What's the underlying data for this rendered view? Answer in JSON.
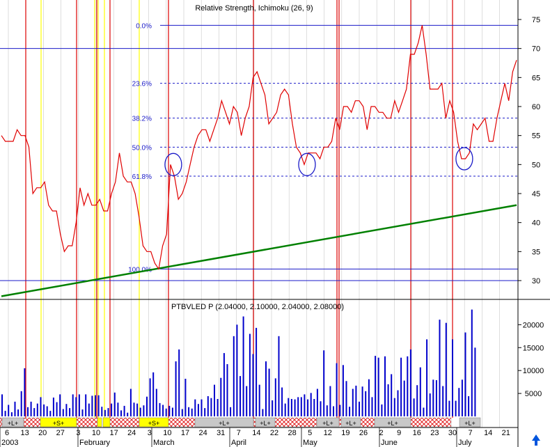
{
  "chart_data": [
    {
      "type": "line",
      "title": "Relative Strength, Ichimoku (26, 9)",
      "ylim": [
        27,
        78
      ],
      "y_ticks": [
        30,
        35,
        40,
        45,
        50,
        55,
        60,
        65,
        70,
        75
      ],
      "series": [
        {
          "name": "Relative Strength",
          "color": "#e00000",
          "points": [
            [
              0,
              55
            ],
            [
              2,
              54
            ],
            [
              4,
              54
            ],
            [
              6,
              54
            ],
            [
              8,
              56
            ],
            [
              10,
              55
            ],
            [
              12,
              55
            ],
            [
              14,
              53
            ],
            [
              16,
              45
            ],
            [
              18,
              46
            ],
            [
              20,
              46
            ],
            [
              22,
              47
            ],
            [
              24,
              43
            ],
            [
              26,
              42
            ],
            [
              28,
              42
            ],
            [
              30,
              38
            ],
            [
              32,
              35
            ],
            [
              34,
              36
            ],
            [
              36,
              36
            ],
            [
              38,
              40
            ],
            [
              40,
              46
            ],
            [
              42,
              43
            ],
            [
              44,
              45
            ],
            [
              46,
              43
            ],
            [
              48,
              43
            ],
            [
              50,
              44
            ],
            [
              52,
              42
            ],
            [
              54,
              42
            ],
            [
              56,
              45
            ],
            [
              58,
              47
            ],
            [
              60,
              52
            ],
            [
              62,
              48
            ],
            [
              64,
              47
            ],
            [
              66,
              47
            ],
            [
              68,
              45
            ],
            [
              70,
              41
            ],
            [
              72,
              36
            ],
            [
              74,
              35
            ],
            [
              76,
              35
            ],
            [
              78,
              33
            ],
            [
              80,
              32
            ],
            [
              82,
              36
            ],
            [
              84,
              38
            ],
            [
              86,
              50
            ],
            [
              88,
              48
            ],
            [
              90,
              44
            ],
            [
              92,
              45
            ],
            [
              94,
              47
            ],
            [
              96,
              50
            ],
            [
              98,
              53
            ],
            [
              100,
              55
            ],
            [
              102,
              56
            ],
            [
              104,
              56
            ],
            [
              106,
              54
            ],
            [
              108,
              56
            ],
            [
              110,
              58
            ],
            [
              112,
              61
            ],
            [
              114,
              59
            ],
            [
              116,
              57
            ],
            [
              118,
              60
            ],
            [
              120,
              59
            ],
            [
              122,
              55
            ],
            [
              124,
              58
            ],
            [
              126,
              60
            ],
            [
              128,
              65
            ],
            [
              130,
              66
            ],
            [
              132,
              64
            ],
            [
              134,
              62
            ],
            [
              136,
              57
            ],
            [
              138,
              58
            ],
            [
              140,
              59
            ],
            [
              142,
              62
            ],
            [
              144,
              63
            ],
            [
              146,
              62
            ],
            [
              148,
              57
            ],
            [
              150,
              53
            ],
            [
              152,
              52
            ],
            [
              154,
              50
            ],
            [
              156,
              52
            ],
            [
              158,
              52
            ],
            [
              160,
              52
            ],
            [
              162,
              51
            ],
            [
              164,
              53
            ],
            [
              166,
              53
            ],
            [
              168,
              54
            ],
            [
              170,
              58
            ],
            [
              172,
              56
            ],
            [
              174,
              60
            ],
            [
              176,
              60
            ],
            [
              178,
              59
            ],
            [
              180,
              61
            ],
            [
              182,
              61
            ],
            [
              184,
              60
            ],
            [
              186,
              56
            ],
            [
              188,
              60
            ],
            [
              190,
              60
            ],
            [
              192,
              59
            ],
            [
              194,
              59
            ],
            [
              196,
              58
            ],
            [
              198,
              58
            ],
            [
              200,
              61
            ],
            [
              202,
              59
            ],
            [
              204,
              61
            ],
            [
              206,
              63
            ],
            [
              208,
              69
            ],
            [
              210,
              69
            ],
            [
              212,
              71
            ],
            [
              214,
              74
            ],
            [
              216,
              69
            ],
            [
              218,
              63
            ],
            [
              220,
              63
            ],
            [
              222,
              63
            ],
            [
              224,
              64
            ],
            [
              226,
              58
            ],
            [
              228,
              61
            ],
            [
              230,
              59
            ],
            [
              232,
              54
            ],
            [
              234,
              51
            ],
            [
              236,
              51
            ],
            [
              238,
              52
            ],
            [
              240,
              57
            ],
            [
              242,
              56
            ],
            [
              244,
              57
            ],
            [
              246,
              58
            ],
            [
              248,
              54
            ],
            [
              250,
              54
            ],
            [
              252,
              58
            ],
            [
              254,
              61
            ],
            [
              256,
              64
            ],
            [
              258,
              61
            ],
            [
              260,
              66
            ],
            [
              262,
              68
            ]
          ]
        },
        {
          "name": "Trendline",
          "color": "#008000",
          "points": [
            [
              0,
              27.3
            ],
            [
              262,
              43
            ]
          ]
        }
      ],
      "fibonacci": [
        {
          "label": "0.0%",
          "value": 74
        },
        {
          "label": "23.6%",
          "value": 64
        },
        {
          "label": "38.2%",
          "value": 58
        },
        {
          "label": "50.0%",
          "value": 53
        },
        {
          "label": "61.8%",
          "value": 48
        },
        {
          "label": "100.0%",
          "value": 32
        }
      ],
      "horizontal_lines": [
        70,
        30
      ],
      "circled_points": [
        [
          86,
          50
        ],
        [
          154,
          50
        ],
        [
          234,
          51
        ]
      ]
    },
    {
      "type": "bar",
      "title": "PTBVLED P (2.04000, 2.10000, 2.04000, 2.08000)",
      "ylim": [
        0,
        24000
      ],
      "y_ticks": [
        5000,
        10000,
        15000,
        20000
      ],
      "color": "#0000cc",
      "values": [
        4800,
        1200,
        2500,
        900,
        3200,
        1500,
        5500,
        10500,
        2000,
        3200,
        1800,
        2800,
        4200,
        2600,
        2200,
        1200,
        4100,
        3100,
        4800,
        1600,
        2700,
        1800,
        4800,
        4200,
        4800,
        1500,
        4800,
        2800,
        4500,
        4600,
        4600,
        2100,
        1400,
        1800,
        2800,
        5200,
        3000,
        1300,
        2300,
        800,
        6000,
        3000,
        2800,
        1900,
        2400,
        4300,
        8300,
        9600,
        6000,
        2900,
        2500,
        1700,
        2300,
        1900,
        12000,
        14600,
        1600,
        8200,
        2000,
        1700,
        3700,
        2700,
        3700,
        1800,
        4400,
        4000,
        6900,
        3800,
        8400,
        13800,
        11400,
        2000,
        17500,
        20000,
        8800,
        21800,
        6600,
        18000,
        13600,
        19300,
        6900,
        1600,
        12000,
        10400,
        3500,
        8300,
        17500,
        6300,
        2800,
        4000,
        3800,
        3700,
        4200,
        4200,
        4800,
        3700,
        5100,
        3800,
        6000,
        3300,
        14400,
        2400,
        6600,
        2200,
        11600,
        2500,
        11200,
        7700,
        2100,
        6000,
        6700,
        3200,
        6500,
        5500,
        8100,
        4200,
        13200,
        12800,
        2600,
        13100,
        7000,
        9200,
        4000,
        5700,
        12800,
        7800,
        13100,
        14600,
        3900,
        6800,
        10700,
        1900,
        16800,
        5000,
        8000,
        7900,
        21100,
        6600,
        20400,
        3400,
        16800,
        3400,
        6200,
        8000,
        18300,
        4400,
        23300,
        15000
      ]
    }
  ],
  "x_axis": {
    "day_labels": [
      "6",
      "13",
      "20",
      "27",
      "3",
      "10",
      "17",
      "24",
      "3",
      "10",
      "17",
      "24",
      "31",
      "7",
      "14",
      "22",
      "28",
      "5",
      "12",
      "19",
      "26",
      "2",
      "9",
      "16",
      "23",
      "30",
      "7",
      "14",
      "21"
    ],
    "month_labels": [
      {
        "label": "2003"
      },
      {
        "label": "February"
      },
      {
        "label": "March"
      },
      {
        "label": "April"
      },
      {
        "label": "May"
      },
      {
        "label": "June"
      },
      {
        "label": "July"
      }
    ]
  },
  "signal_band": [
    {
      "text": "+L+",
      "style": "gray"
    },
    {
      "text": "+S+",
      "style": "yellow"
    },
    {
      "text": "+S+",
      "style": "yellow"
    },
    {
      "text": "+L+",
      "style": "gray"
    },
    {
      "text": "+L+",
      "style": "gray"
    },
    {
      "text": "+L+",
      "style": "gray"
    },
    {
      "text": "+L+",
      "style": "gray"
    },
    {
      "text": "+L+",
      "style": "gray"
    },
    {
      "text": "+L+",
      "style": "gray"
    }
  ],
  "colors": {
    "background": "#ffffff",
    "fib_line": "#1a1ac8",
    "vertical_event": "#dd0000",
    "vertical_short": "#ffff00",
    "grid_gray": "#c8c8c8",
    "up_arrow": "#0055dd"
  }
}
